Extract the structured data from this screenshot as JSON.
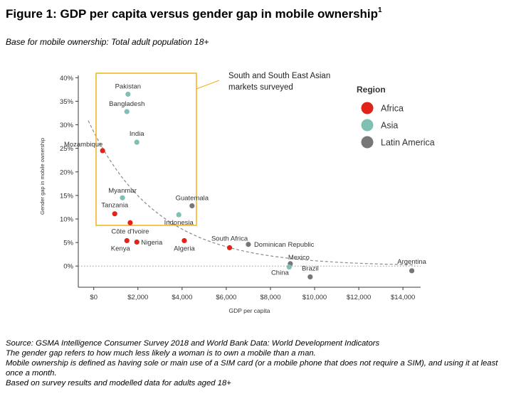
{
  "figure": {
    "title_prefix": "Figure 1: GDP per capita versus gender gap in mobile ownership",
    "title_sup": "1",
    "subtitle": "Base for mobile ownership: Total adult population 18+"
  },
  "chart_data": {
    "type": "scatter",
    "xlabel": "GDP per capita",
    "ylabel": "Gender gap in mobile ownership",
    "xlim": [
      -700,
      14800
    ],
    "ylim": [
      -4.5,
      40.5
    ],
    "x_ticks": [
      0,
      2000,
      4000,
      6000,
      8000,
      10000,
      12000,
      14000
    ],
    "x_tick_labels": [
      "$0",
      "$2,000",
      "$4,000",
      "$6,000",
      "$8,000",
      "$10,000",
      "$12,000",
      "$14,000"
    ],
    "y_ticks": [
      0,
      5,
      10,
      15,
      20,
      25,
      30,
      35,
      40
    ],
    "y_tick_labels": [
      "0%",
      "5%",
      "10%",
      "15%",
      "20%",
      "25%",
      "30%",
      "35%",
      "40%"
    ],
    "legend": {
      "title": "Region",
      "placement": "right",
      "entries": [
        {
          "name": "Africa",
          "color": "#e2231a"
        },
        {
          "name": "Asia",
          "color": "#7fbfb4"
        },
        {
          "name": "Latin America",
          "color": "#777777"
        }
      ]
    },
    "points": [
      {
        "label": "Pakistan",
        "region": "Asia",
        "x": 1550,
        "y": 36.5
      },
      {
        "label": "Bangladesh",
        "region": "Asia",
        "x": 1500,
        "y": 32.8
      },
      {
        "label": "India",
        "region": "Asia",
        "x": 1950,
        "y": 26.3
      },
      {
        "label": "Mozambique",
        "region": "Africa",
        "x": 400,
        "y": 24.5
      },
      {
        "label": "Myanmar",
        "region": "Asia",
        "x": 1300,
        "y": 14.5
      },
      {
        "label": "Tanzania",
        "region": "Africa",
        "x": 950,
        "y": 11.1
      },
      {
        "label": "Côte d'Ivoire",
        "region": "Africa",
        "x": 1650,
        "y": 9.2
      },
      {
        "label": "Kenya",
        "region": "Africa",
        "x": 1500,
        "y": 5.4
      },
      {
        "label": "Nigeria",
        "region": "Africa",
        "x": 1950,
        "y": 5.1
      },
      {
        "label": "Indonesia",
        "region": "Asia",
        "x": 3850,
        "y": 10.9
      },
      {
        "label": "Guatemala",
        "region": "Latin America",
        "x": 4450,
        "y": 12.8
      },
      {
        "label": "Algeria",
        "region": "Africa",
        "x": 4100,
        "y": 5.4
      },
      {
        "label": "South Africa",
        "region": "Africa",
        "x": 6150,
        "y": 3.9
      },
      {
        "label": "Dominican Republic",
        "region": "Latin America",
        "x": 7000,
        "y": 4.6
      },
      {
        "label": "Mexico",
        "region": "Latin America",
        "x": 8900,
        "y": 0.5
      },
      {
        "label": "China",
        "region": "Asia",
        "x": 8850,
        "y": -0.2
      },
      {
        "label": "Brazil",
        "region": "Latin America",
        "x": 9800,
        "y": -2.3
      },
      {
        "label": "Argentina",
        "region": "Latin America",
        "x": 14400,
        "y": -1.0
      }
    ],
    "trendline": {
      "style": "dashed",
      "kind": "exponential decay"
    },
    "annotation": {
      "text": [
        "South and South East Asian",
        "markets surveyed"
      ]
    }
  },
  "footnotes": [
    "Source: GSMA Intelligence Consumer Survey 2018 and World Bank Data: World Development Indicators",
    "The gender gap refers to how much less likely a woman is to own a mobile than a man.",
    "Mobile ownership is defined as having sole or main use of a SIM card (or a mobile phone that does not require a SIM), and using it at least once a month.",
    "Based on survey results and modelled data for adults aged 18+"
  ]
}
